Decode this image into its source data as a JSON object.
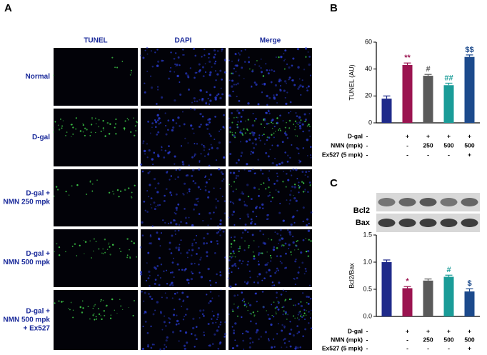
{
  "panel_a": {
    "label": "A",
    "columns": [
      "TUNEL",
      "DAPI",
      "Merge"
    ],
    "rows": [
      [
        "Normal"
      ],
      [
        "D-gal"
      ],
      [
        "D-gal +",
        "NMN 250 mpk"
      ],
      [
        "D-gal +",
        "NMN 500 mpk"
      ],
      [
        "D-gal +",
        "NMN 500 mpk",
        "+ Ex527"
      ]
    ]
  },
  "chart_data": [
    {
      "type": "bar",
      "panel_label": "B",
      "ylabel": "TUNEL (AU)",
      "values": [
        18,
        43,
        35,
        28,
        49
      ],
      "errors": [
        2,
        1.5,
        1,
        1.5,
        1.5
      ],
      "colors": [
        "#1f2a8a",
        "#9b1450",
        "#5a5a5a",
        "#1a9c98",
        "#1c4a8c"
      ],
      "annotations": [
        null,
        "**",
        "#",
        "##",
        "$$"
      ],
      "ylim": [
        0,
        60
      ],
      "yticks": [
        0,
        20,
        40,
        60
      ],
      "conditions": [
        {
          "name": "D-gal",
          "values": [
            "-",
            "+",
            "+",
            "+",
            "+"
          ]
        },
        {
          "name": "NMN (mpk)",
          "values": [
            "-",
            "-",
            "250",
            "500",
            "500"
          ]
        },
        {
          "name": "Ex527 (5 mpk)",
          "values": [
            "-",
            "-",
            "-",
            "-",
            "+"
          ]
        }
      ]
    },
    {
      "type": "bar",
      "panel_label": "C",
      "ylabel": "Bcl2/Bax",
      "blot_labels": [
        "Bcl2",
        "Bax"
      ],
      "values": [
        1.0,
        0.52,
        0.66,
        0.73,
        0.46
      ],
      "errors": [
        0.04,
        0.03,
        0.03,
        0.03,
        0.05
      ],
      "colors": [
        "#1f2a8a",
        "#9b1450",
        "#5a5a5a",
        "#1a9c98",
        "#1c4a8c"
      ],
      "annotations": [
        null,
        "*",
        null,
        "#",
        "$"
      ],
      "ylim": [
        0,
        1.5
      ],
      "yticks": [
        {
          "value": 0,
          "label": "0.0"
        },
        0.5,
        {
          "value": 1,
          "label": "1.0"
        },
        1.5
      ],
      "conditions": [
        {
          "name": "D-gal",
          "values": [
            "-",
            "+",
            "+",
            "+",
            "+"
          ]
        },
        {
          "name": "NMN (mpk)",
          "values": [
            "-",
            "-",
            "250",
            "500",
            "500"
          ]
        },
        {
          "name": "Ex527 (5 mpk)",
          "values": [
            "-",
            "-",
            "-",
            "-",
            "+"
          ]
        }
      ]
    }
  ]
}
